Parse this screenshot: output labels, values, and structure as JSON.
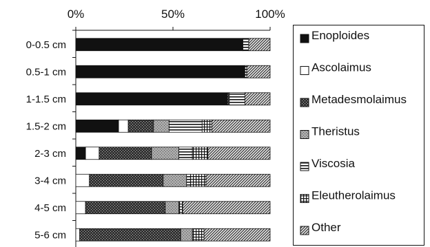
{
  "chart_data": {
    "type": "bar",
    "orientation": "horizontal",
    "stacked": true,
    "normalized_percent": true,
    "xlim": [
      0,
      100
    ],
    "xticks": [
      "0%",
      "50%",
      "100%"
    ],
    "x_axis_position": "top",
    "grid": false,
    "legend_position": "right",
    "categories": [
      "0-0.5 cm",
      "0.5-1 cm",
      "1-1.5 cm",
      "1.5-2 cm",
      "2-3 cm",
      "3-4 cm",
      "4-5 cm",
      "5-6 cm"
    ],
    "series": [
      {
        "name": "Enoploides",
        "pattern": "solid-black",
        "values": [
          86,
          87,
          78,
          22,
          5,
          0,
          0,
          0
        ]
      },
      {
        "name": "Ascolaimus",
        "pattern": "white",
        "values": [
          0,
          0,
          0,
          5,
          7,
          7,
          5,
          2
        ]
      },
      {
        "name": "Metadesmolaimus",
        "pattern": "dark-stipple",
        "values": [
          0,
          0,
          1,
          13,
          27,
          38,
          41,
          52
        ]
      },
      {
        "name": "Theristus",
        "pattern": "light-stipple",
        "values": [
          0,
          0,
          0,
          8,
          14,
          12,
          7,
          6
        ]
      },
      {
        "name": "Viscosia",
        "pattern": "horizontal-lines",
        "values": [
          3,
          1,
          8,
          17,
          7,
          2,
          0,
          0
        ]
      },
      {
        "name": "Eleutherolaimus",
        "pattern": "grid",
        "values": [
          0,
          0,
          0,
          5,
          8,
          8,
          2,
          6
        ]
      },
      {
        "name": "Other",
        "pattern": "diagonal-hatch",
        "values": [
          11,
          12,
          13,
          30,
          32,
          33,
          45,
          34
        ]
      }
    ]
  },
  "colors": {
    "black": "#111111",
    "white": "#ffffff",
    "frame": "#111111"
  }
}
